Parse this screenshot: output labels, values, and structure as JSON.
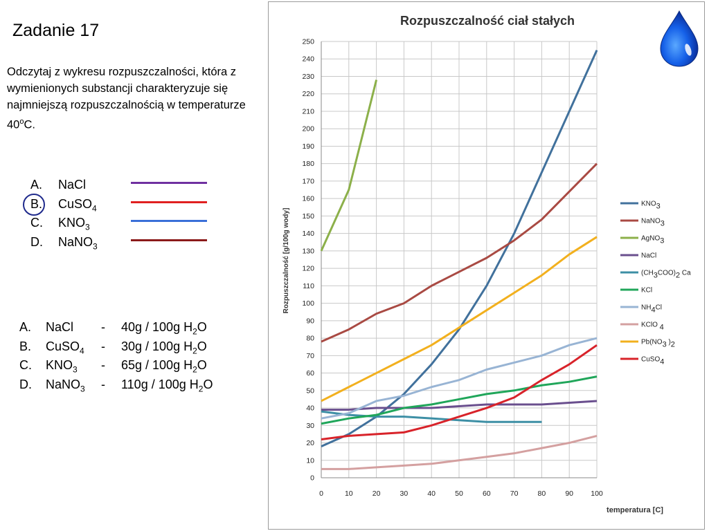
{
  "slide": {
    "title": "Zadanie 17",
    "question": "Odczytaj z wykresu rozpuszczalności, która z wymienionych substancji charakteryzuje się najmniejszą rozpuszczalnością w temperaturze 40",
    "question_deg": "o",
    "question_end": "C."
  },
  "options": [
    {
      "letter": "A.",
      "name": "NaCl",
      "sub": "",
      "tail": "",
      "color": "#7030a0"
    },
    {
      "letter": "B.",
      "name": "CuSO",
      "sub": "4",
      "tail": "",
      "color": "#e02020"
    },
    {
      "letter": "C.",
      "name": "KNO",
      "sub": "3",
      "tail": "",
      "color": "#3a6fd8"
    },
    {
      "letter": "D.",
      "name": "NaNO",
      "sub": "3",
      "tail": "",
      "color": "#8b1a1a"
    }
  ],
  "answers": [
    {
      "letter": "A.",
      "name": "NaCl",
      "sub": "",
      "dash": "-",
      "value": "40g / 100g H",
      "vsub": "2",
      "vend": "O"
    },
    {
      "letter": "B.",
      "name": "CuSO",
      "sub": "4",
      "dash": "-",
      "value": "30g / 100g H",
      "vsub": "2",
      "vend": "O"
    },
    {
      "letter": "C.",
      "name": "KNO",
      "sub": "3",
      "dash": "-",
      "value": "65g / 100g H",
      "vsub": "2",
      "vend": "O"
    },
    {
      "letter": "D.",
      "name": "NaNO",
      "sub": "3",
      "dash": "-",
      "value": "110g / 100g H",
      "vsub": "2",
      "vend": "O"
    }
  ],
  "chart_data": {
    "type": "line",
    "title": "Rozpuszczalność ciał stałych",
    "xlabel": "temperatura [C]",
    "ylabel": "Rozpuszczalność [g/100g wody]",
    "x_ticks": [
      0,
      10,
      20,
      30,
      40,
      50,
      60,
      70,
      80,
      90,
      100
    ],
    "y_ticks": [
      0,
      10,
      20,
      30,
      40,
      50,
      60,
      70,
      80,
      90,
      100,
      110,
      120,
      130,
      140,
      150,
      160,
      170,
      180,
      190,
      200,
      210,
      220,
      230,
      240,
      250
    ],
    "xlim": [
      0,
      100
    ],
    "ylim": [
      0,
      250
    ],
    "grid": true,
    "legend_position": "right",
    "series": [
      {
        "name": "KNO",
        "sub": "3",
        "tail": "",
        "color": "#41719c",
        "x": [
          0,
          10,
          20,
          30,
          40,
          50,
          60,
          70,
          80,
          90,
          100
        ],
        "y": [
          18,
          25,
          35,
          48,
          65,
          85,
          110,
          140,
          175,
          210,
          245
        ]
      },
      {
        "name": "NaNO",
        "sub": "3",
        "tail": "",
        "color": "#a94a43",
        "x": [
          0,
          10,
          20,
          30,
          40,
          50,
          60,
          70,
          80,
          90,
          100
        ],
        "y": [
          78,
          85,
          94,
          100,
          110,
          118,
          126,
          136,
          148,
          164,
          180
        ]
      },
      {
        "name": "AgNO",
        "sub": "3",
        "tail": "",
        "color": "#8cb04a",
        "x": [
          0,
          10,
          20
        ],
        "y": [
          130,
          165,
          228
        ]
      },
      {
        "name": "NaCl",
        "sub": "",
        "tail": "",
        "color": "#6a4f8e",
        "x": [
          0,
          10,
          20,
          30,
          40,
          50,
          60,
          70,
          80,
          90,
          100
        ],
        "y": [
          39,
          39,
          40,
          40,
          40,
          41,
          42,
          42,
          42,
          43,
          44
        ]
      },
      {
        "name": "(CH",
        "sub": "3",
        "tail": "COO)",
        "sub2": "2",
        "tail2": " Ca",
        "color": "#3d8fa5",
        "x": [
          0,
          10,
          20,
          30,
          40,
          50,
          60,
          70,
          80
        ],
        "y": [
          38,
          36,
          35,
          35,
          34,
          33,
          32,
          32,
          32
        ]
      },
      {
        "name": "KCl",
        "sub": "",
        "tail": "",
        "color": "#20a65a",
        "x": [
          0,
          10,
          20,
          30,
          40,
          50,
          60,
          70,
          80,
          90,
          100
        ],
        "y": [
          31,
          34,
          36,
          40,
          42,
          45,
          48,
          50,
          53,
          55,
          58
        ]
      },
      {
        "name": "NH",
        "sub": "4",
        "tail": "Cl",
        "color": "#98b4d4",
        "x": [
          0,
          10,
          20,
          30,
          40,
          50,
          60,
          70,
          80,
          90,
          100
        ],
        "y": [
          34,
          37,
          44,
          47,
          52,
          56,
          62,
          66,
          70,
          76,
          80
        ]
      },
      {
        "name": "KClO ",
        "sub": "4",
        "tail": "",
        "color": "#d4a0a0",
        "x": [
          0,
          10,
          20,
          30,
          40,
          50,
          60,
          70,
          80,
          90,
          100
        ],
        "y": [
          5,
          5,
          6,
          7,
          8,
          10,
          12,
          14,
          17,
          20,
          24
        ]
      },
      {
        "name": "Pb(NO",
        "sub": "3",
        "tail": " )",
        "sub2": "2",
        "tail2": "",
        "color": "#f2b01e",
        "x": [
          0,
          10,
          20,
          30,
          40,
          50,
          60,
          70,
          80,
          90,
          100
        ],
        "y": [
          44,
          52,
          60,
          68,
          76,
          86,
          96,
          106,
          116,
          128,
          138
        ]
      },
      {
        "name": "CuSO",
        "sub": "4",
        "tail": "",
        "color": "#d8232a",
        "x": [
          0,
          10,
          20,
          30,
          40,
          50,
          60,
          70,
          80,
          90,
          100
        ],
        "y": [
          22,
          24,
          25,
          26,
          30,
          35,
          40,
          46,
          56,
          65,
          76
        ]
      }
    ]
  }
}
